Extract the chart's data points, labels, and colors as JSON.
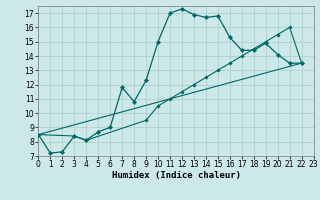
{
  "xlabel": "Humidex (Indice chaleur)",
  "bg_color": "#cce8e8",
  "grid_color": "#aacccc",
  "line_color": "#006666",
  "xlim": [
    0,
    23
  ],
  "ylim": [
    7,
    17.5
  ],
  "yticks": [
    7,
    8,
    9,
    10,
    11,
    12,
    13,
    14,
    15,
    16,
    17
  ],
  "xticks": [
    0,
    1,
    2,
    3,
    4,
    5,
    6,
    7,
    8,
    9,
    10,
    11,
    12,
    13,
    14,
    15,
    16,
    17,
    18,
    19,
    20,
    21,
    22,
    23
  ],
  "curve1_x": [
    0,
    1,
    2,
    3,
    4,
    5,
    6,
    7,
    8,
    9,
    10,
    11,
    12,
    13,
    14,
    15,
    16,
    17,
    18,
    19,
    20,
    21,
    22
  ],
  "curve1_y": [
    8.5,
    7.2,
    7.3,
    8.4,
    8.1,
    8.7,
    9.0,
    11.8,
    10.8,
    12.3,
    15.0,
    17.0,
    17.3,
    16.9,
    16.7,
    16.8,
    15.3,
    14.4,
    14.4,
    14.9,
    14.1,
    13.5,
    13.5
  ],
  "curve2_x": [
    0,
    3,
    4,
    9,
    10,
    11,
    12,
    13,
    14,
    15,
    16,
    17,
    18,
    19,
    20,
    21,
    22
  ],
  "curve2_y": [
    8.5,
    8.4,
    8.1,
    9.5,
    10.5,
    11.0,
    11.5,
    12.0,
    12.5,
    13.0,
    13.5,
    14.0,
    14.5,
    15.0,
    15.5,
    16.0,
    13.5
  ],
  "curve3_x": [
    0,
    22
  ],
  "curve3_y": [
    8.5,
    13.5
  ]
}
